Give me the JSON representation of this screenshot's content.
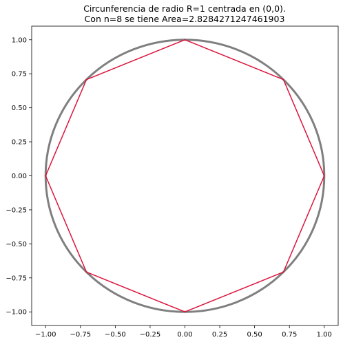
{
  "chart_data": {
    "type": "line",
    "title": [
      "Circunferencia de radio R=1 centrada en (0,0).",
      "Con n=8 se tiene Area=2.8284271247461903"
    ],
    "xlabel": "",
    "ylabel": "",
    "xlim": [
      -1.1,
      1.1
    ],
    "ylim": [
      -1.1,
      1.1
    ],
    "grid": false,
    "x_ticks": [
      -1.0,
      -0.75,
      -0.5,
      -0.25,
      0.0,
      0.25,
      0.5,
      0.75,
      1.0
    ],
    "x_tick_labels": [
      "−1.00",
      "−0.75",
      "−0.50",
      "−0.25",
      "0.00",
      "0.25",
      "0.50",
      "0.75",
      "1.00"
    ],
    "y_ticks": [
      1.0,
      0.75,
      0.5,
      0.25,
      0.0,
      -0.25,
      -0.5,
      -0.75,
      -1.0
    ],
    "y_tick_labels": [
      "1.00",
      "0.75",
      "0.50",
      "0.25",
      "0.00",
      "−0.25",
      "−0.50",
      "−0.75",
      "−1.00"
    ],
    "series": [
      {
        "kind": "circle",
        "center": [
          0,
          0
        ],
        "radius": 1,
        "color": "#7f7f7f"
      },
      {
        "kind": "polygon",
        "color": "#dc143c",
        "x": [
          1.0,
          0.7071,
          0.0,
          -0.7071,
          -1.0,
          -0.7071,
          0.0,
          0.7071,
          1.0
        ],
        "y": [
          0.0,
          0.7071,
          1.0,
          0.7071,
          0.0,
          -0.7071,
          -1.0,
          -0.7071,
          0.0
        ]
      }
    ]
  }
}
